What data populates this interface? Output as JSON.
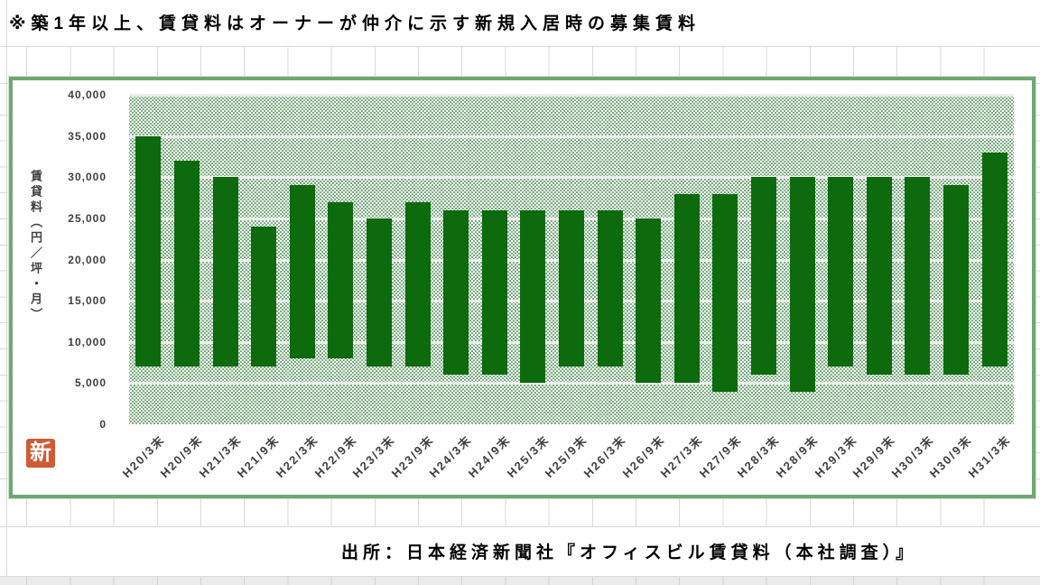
{
  "note": {
    "text": "※築1年以上、賃貸料はオーナーが仲介に示す新規入居時の募集賃料"
  },
  "source": {
    "text": "出所：日本経済新聞社『オフィスビル賃貸料（本社調査）』"
  },
  "stamp": {
    "label": "新",
    "color": "#CE5B33"
  },
  "chart_data": {
    "type": "bar",
    "subtype": "floating-range-bars",
    "title": "",
    "xlabel": "",
    "ylabel": "賃貸料（円／坪・月）",
    "ylim": [
      0,
      40000
    ],
    "ytick_interval": 5000,
    "yticks": [
      40000,
      35000,
      30000,
      25000,
      20000,
      15000,
      10000,
      5000,
      0
    ],
    "ytick_labels": [
      "40,000",
      "35,000",
      "30,000",
      "25,000",
      "20,000",
      "15,000",
      "10,000",
      "5,000",
      "0"
    ],
    "grid": true,
    "legend": "none",
    "bar_color": "#0D6A0D",
    "plot_pattern": "green-dot-texture",
    "categories": [
      "H20/3末",
      "H20/9末",
      "H21/3末",
      "H21/9末",
      "H22/3末",
      "H22/9末",
      "H23/3末",
      "H23/9末",
      "H24/3末",
      "H24/9末",
      "H25/3末",
      "H25/9末",
      "H26/3末",
      "H26/9末",
      "H27/3末",
      "H27/9末",
      "H28/3末",
      "H28/9末",
      "H29/3末",
      "H29/9末",
      "H30/3末",
      "H30/9末",
      "H31/3末"
    ],
    "bar_low": [
      7000,
      7000,
      7000,
      7000,
      8000,
      8000,
      7000,
      7000,
      6000,
      6000,
      5000,
      7000,
      7000,
      5000,
      5000,
      4000,
      6000,
      4000,
      7000,
      6000,
      6000,
      6000,
      7000
    ],
    "bar_high": [
      35000,
      32000,
      30000,
      24000,
      29000,
      27000,
      25000,
      27000,
      26000,
      26000,
      26000,
      26000,
      26000,
      25000,
      28000,
      28000,
      30000,
      30000,
      30000,
      30000,
      30000,
      29000,
      33000
    ]
  }
}
